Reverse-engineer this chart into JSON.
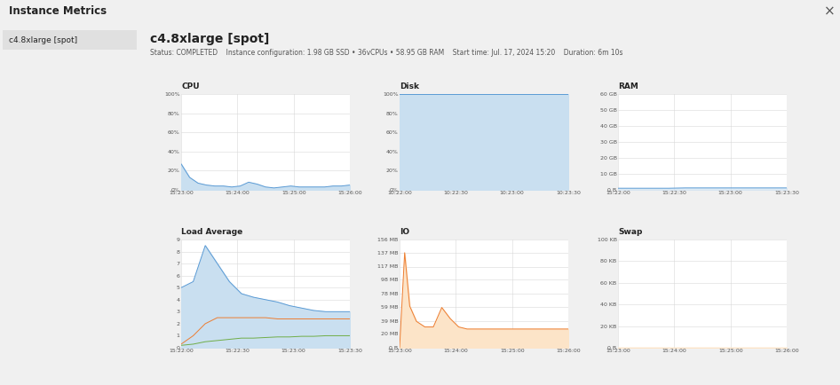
{
  "title": "Instance Metrics",
  "instance_name": "c4.8xlarge [spot]",
  "status_text": "Status: COMPLETED    Instance configuration: 1.98 GB SSD • 36vCPUs • 58.95 GB RAM    Start time: Jul. 17, 2024 15:20    Duration: 6m 10s",
  "sidebar_item": "c4.8xlarge [spot]",
  "cpu": {
    "title": "CPU",
    "x_labels": [
      "15:23:00",
      "15:24:00",
      "15:25:00",
      "15:26:00"
    ],
    "x": [
      0,
      0.5,
      1,
      1.5,
      2,
      2.5,
      3,
      3.5,
      4,
      4.5,
      5,
      5.5,
      6,
      6.5,
      7,
      7.5,
      8,
      8.5,
      9,
      9.5,
      10
    ],
    "y": [
      27,
      13,
      7,
      5,
      4,
      4,
      3,
      4,
      8,
      6,
      3,
      2,
      3,
      4,
      3,
      3,
      3,
      3,
      4,
      4,
      5
    ],
    "ylim": [
      0,
      100
    ],
    "yticks": [
      0,
      20,
      40,
      60,
      80,
      100
    ],
    "ytick_labels": [
      "0%",
      "20%",
      "40%",
      "60%",
      "80%",
      "100%"
    ],
    "fill_color": "#c9dff0",
    "line_color": "#5b9bd5"
  },
  "disk": {
    "title": "Disk",
    "x_labels": [
      "10:22:00",
      "10:22:30",
      "10:23:00",
      "10:23:30"
    ],
    "x": [
      0,
      2,
      4,
      6,
      8,
      10
    ],
    "y": [
      100,
      100,
      100,
      100,
      100,
      100
    ],
    "ylim": [
      0,
      100
    ],
    "yticks": [
      0,
      20,
      40,
      60,
      80,
      100
    ],
    "ytick_labels": [
      "0%",
      "20%",
      "40%",
      "60%",
      "80%",
      "100%"
    ],
    "fill_color": "#c9dff0",
    "line_color": "#5b9bd5"
  },
  "ram": {
    "title": "RAM",
    "x_labels": [
      "15:22:00",
      "15:22:30",
      "15:23:00",
      "15:23:30"
    ],
    "x": [
      0,
      1,
      2,
      3,
      4,
      5,
      6,
      7,
      8,
      9,
      10
    ],
    "y": [
      1,
      1,
      1,
      1,
      1.2,
      1.2,
      1.2,
      1.2,
      1.2,
      1.2,
      1.2
    ],
    "ylim": [
      0,
      60
    ],
    "yticks": [
      0,
      10,
      20,
      30,
      40,
      50,
      60
    ],
    "ytick_labels": [
      "0 B",
      "10 GB",
      "20 GB",
      "30 GB",
      "40 GB",
      "50 GB",
      "60 GB"
    ],
    "fill_color": "#c9dff0",
    "line_color": "#5b9bd5"
  },
  "load_avg": {
    "title": "Load Average",
    "x_labels": [
      "15:22:00",
      "15:22:30",
      "15:23:00",
      "15:23:30"
    ],
    "x": [
      0,
      0.5,
      1.0,
      1.5,
      2.0,
      2.5,
      3.0,
      3.5,
      4.0,
      4.5,
      5.0,
      5.5,
      6.0,
      6.5,
      7.0
    ],
    "y_blue": [
      5,
      5.5,
      8.5,
      7.0,
      5.5,
      4.5,
      4.2,
      4.0,
      3.8,
      3.5,
      3.3,
      3.1,
      3.0,
      3.0,
      3.0
    ],
    "y_orange": [
      0.3,
      1.0,
      2.0,
      2.5,
      2.5,
      2.5,
      2.5,
      2.5,
      2.4,
      2.4,
      2.4,
      2.4,
      2.4,
      2.4,
      2.4
    ],
    "y_green": [
      0.2,
      0.3,
      0.5,
      0.6,
      0.7,
      0.8,
      0.8,
      0.85,
      0.9,
      0.9,
      0.95,
      0.95,
      1.0,
      1.0,
      1.0
    ],
    "ylim": [
      0,
      9
    ],
    "yticks": [
      0,
      1,
      2,
      3,
      4,
      5,
      6,
      7,
      8,
      9
    ],
    "fill_color_blue": "#c9dff0",
    "line_color_blue": "#5b9bd5",
    "line_color_orange": "#ed7d31",
    "line_color_green": "#70ad47"
  },
  "io": {
    "title": "IO",
    "x_labels": [
      "15:23:00",
      "15:24:00",
      "15:25:00",
      "15:26:00"
    ],
    "x": [
      0,
      0.3,
      0.6,
      1.0,
      1.5,
      2.0,
      2.5,
      3.0,
      3.5,
      4.0,
      4.5,
      5.0,
      5.5,
      6.0,
      6.5,
      7.0,
      7.5,
      8.0,
      8.5,
      9.0,
      9.5,
      10.0
    ],
    "y_orange": [
      0,
      137,
      60,
      38,
      30,
      30,
      58,
      42,
      30,
      27,
      27,
      27,
      27,
      27,
      27,
      27,
      27,
      27,
      27,
      27,
      27,
      27
    ],
    "y_blue": [
      0,
      0,
      0,
      0,
      0,
      0,
      0,
      0,
      0,
      0,
      0,
      0,
      0,
      0,
      0,
      0,
      0,
      0,
      0,
      0,
      0,
      0
    ],
    "ylim": [
      0,
      156
    ],
    "yticks": [
      0,
      20,
      39,
      59,
      78,
      98,
      117,
      137,
      156
    ],
    "ytick_labels": [
      "0 B",
      "20 MB",
      "39 MB",
      "59 MB",
      "78 MB",
      "98 MB",
      "117 MB",
      "137 MB",
      "156 MB"
    ],
    "fill_color_orange": "#fce4c8",
    "line_color_orange": "#ed7d31",
    "line_color_blue": "#5b9bd5"
  },
  "swap": {
    "title": "Swap",
    "x_labels": [
      "15:23:00",
      "15:24:00",
      "15:25:00",
      "15:26:00"
    ],
    "x": [
      0,
      2,
      4,
      6,
      8,
      10
    ],
    "y": [
      0,
      0,
      0,
      0,
      0,
      0
    ],
    "ylim": [
      0,
      100
    ],
    "yticks": [
      0,
      20,
      40,
      60,
      80,
      100
    ],
    "ytick_labels": [
      "0 B",
      "20 KB",
      "40 KB",
      "60 KB",
      "80 KB",
      "100 KB"
    ],
    "fill_color": "#fce4c8",
    "line_color": "#ed7d31"
  },
  "bg_color": "#f0f0f0",
  "panel_color": "#ffffff",
  "grid_color": "#d8d8d8",
  "header_bg": "#e4e4e4",
  "text_color": "#222222",
  "muted_color": "#555555",
  "sidebar_bg": "#f0f0f0",
  "sidebar_item_bg": "#e0e0e0"
}
